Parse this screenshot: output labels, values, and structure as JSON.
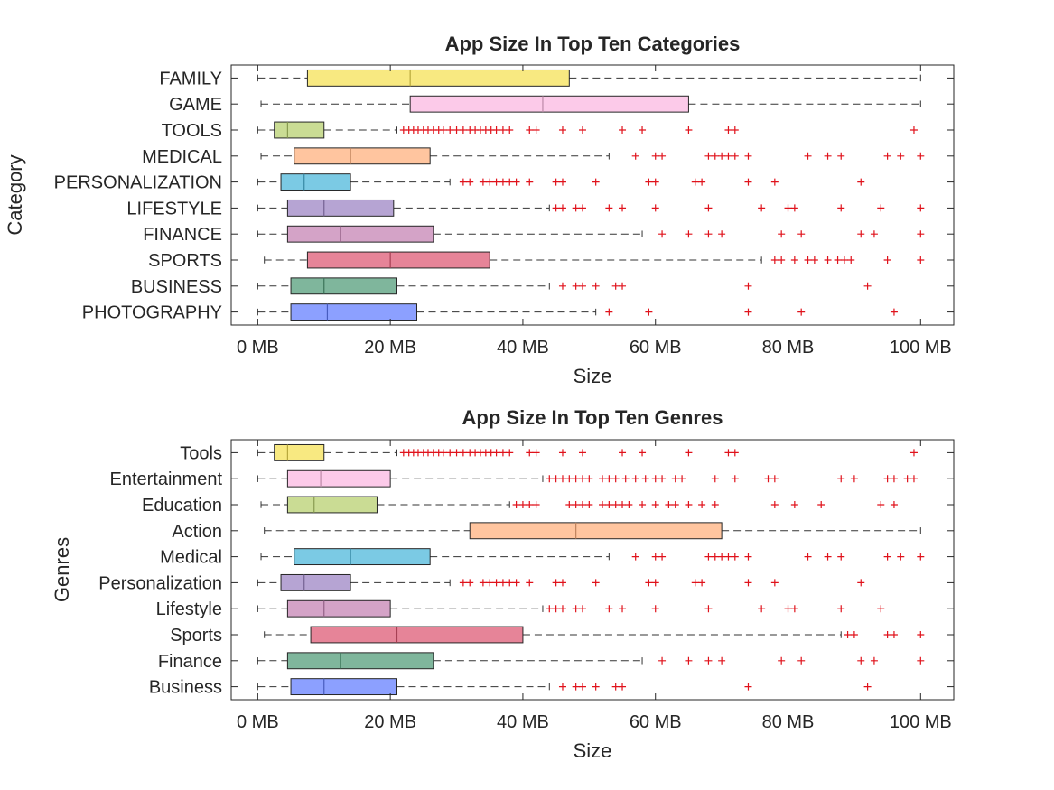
{
  "chart_data": [
    {
      "type": "boxplot",
      "orientation": "horizontal",
      "title": "App Size In Top Ten Categories",
      "xlabel": "Size",
      "ylabel": "Category",
      "xlim": [
        -4,
        105
      ],
      "xticks": [
        0,
        20,
        40,
        60,
        80,
        100
      ],
      "xtick_labels": [
        "0 MB",
        "20 MB",
        "40 MB",
        "60 MB",
        "80 MB",
        "100 MB"
      ],
      "grid": false,
      "categories": [
        {
          "name": "FAMILY",
          "color": "#F5E050",
          "whisker_low": 0,
          "q1": 7.5,
          "median": 23,
          "q3": 47,
          "whisker_high": 100,
          "outliers": []
        },
        {
          "name": "GAME",
          "color": "#FBB6E0",
          "whisker_low": 0.5,
          "q1": 23,
          "median": 43,
          "q3": 65,
          "whisker_high": 100,
          "outliers": []
        },
        {
          "name": "TOOLS",
          "color": "#B5CF6B",
          "whisker_low": 0,
          "q1": 2.5,
          "median": 4.5,
          "q3": 10,
          "whisker_high": 21,
          "outliers": [
            22,
            22.8,
            23.5,
            24.2,
            25,
            25.7,
            26.5,
            27.3,
            28,
            29,
            30,
            31,
            32,
            32.8,
            33.6,
            34.4,
            35.2,
            36,
            37,
            38,
            41,
            42,
            46,
            49,
            55,
            58,
            65,
            71,
            72,
            99
          ]
        },
        {
          "name": "MEDICAL",
          "color": "#FFAF7A",
          "whisker_low": 0.5,
          "q1": 5.5,
          "median": 14,
          "q3": 26,
          "whisker_high": 53,
          "outliers": [
            57,
            60,
            61,
            68,
            69,
            70,
            71,
            72,
            74,
            83,
            86,
            88,
            95,
            97,
            100
          ]
        },
        {
          "name": "PERSONALIZATION",
          "color": "#48B5DA",
          "whisker_low": 0,
          "q1": 3.5,
          "median": 7,
          "q3": 14,
          "whisker_high": 29,
          "outliers": [
            31,
            32,
            34,
            35,
            36,
            37,
            38,
            39,
            41,
            45,
            46,
            51,
            59,
            60,
            66,
            67,
            74,
            78,
            91
          ]
        },
        {
          "name": "LIFESTYLE",
          "color": "#9A81C2",
          "whisker_low": 0,
          "q1": 4.5,
          "median": 10,
          "q3": 20.5,
          "whisker_high": 44,
          "outliers": [
            45,
            46,
            48,
            49,
            53,
            55,
            60,
            68,
            76,
            80,
            81,
            88,
            94,
            100
          ]
        },
        {
          "name": "FINANCE",
          "color": "#C480B2",
          "whisker_low": 0,
          "q1": 4.5,
          "median": 12.5,
          "q3": 26.5,
          "whisker_high": 58,
          "outliers": [
            61,
            65,
            68,
            70,
            79,
            82,
            91,
            93,
            100
          ]
        },
        {
          "name": "SPORTS",
          "color": "#DD5570",
          "whisker_low": 1,
          "q1": 7.5,
          "median": 20,
          "q3": 35,
          "whisker_high": 76,
          "outliers": [
            78,
            79,
            81,
            83,
            84,
            86,
            87.5,
            88.5,
            89.5,
            95,
            100
          ]
        },
        {
          "name": "BUSINESS",
          "color": "#4E9A76",
          "whisker_low": 0,
          "q1": 5,
          "median": 10,
          "q3": 21,
          "whisker_high": 44,
          "outliers": [
            46,
            48,
            49,
            51,
            54,
            55,
            74,
            92
          ]
        },
        {
          "name": "PHOTOGRAPHY",
          "color": "#5F7BFF",
          "whisker_low": 0,
          "q1": 5,
          "median": 10.5,
          "q3": 24,
          "whisker_high": 51,
          "outliers": [
            53,
            59,
            74,
            82,
            96
          ]
        }
      ]
    },
    {
      "type": "boxplot",
      "orientation": "horizontal",
      "title": "App Size In Top Ten Genres",
      "xlabel": "Size",
      "ylabel": "Genres",
      "xlim": [
        -4,
        105
      ],
      "xticks": [
        0,
        20,
        40,
        60,
        80,
        100
      ],
      "xtick_labels": [
        "0 MB",
        "20 MB",
        "40 MB",
        "60 MB",
        "80 MB",
        "100 MB"
      ],
      "grid": false,
      "categories": [
        {
          "name": "Tools",
          "color": "#F5E050",
          "whisker_low": 0,
          "q1": 2.5,
          "median": 4.5,
          "q3": 10,
          "whisker_high": 21,
          "outliers": [
            22,
            22.8,
            23.5,
            24.2,
            25,
            25.7,
            26.5,
            27.3,
            28,
            29,
            30,
            31,
            32,
            32.8,
            33.6,
            34.4,
            35.2,
            36,
            37,
            38,
            41,
            42,
            46,
            49,
            55,
            58,
            65,
            71,
            72,
            99
          ]
        },
        {
          "name": "Entertainment",
          "color": "#FBB6E0",
          "whisker_low": 0,
          "q1": 4.5,
          "median": 9.5,
          "q3": 20,
          "whisker_high": 43,
          "outliers": [
            44,
            45,
            46,
            47,
            48,
            49,
            50,
            52,
            53,
            54,
            55.5,
            57,
            58.5,
            60,
            61,
            63,
            64,
            69,
            72,
            77,
            78,
            88,
            90,
            95,
            96,
            98,
            99
          ]
        },
        {
          "name": "Education",
          "color": "#B5CF6B",
          "whisker_low": 0.5,
          "q1": 4.5,
          "median": 8.5,
          "q3": 18,
          "whisker_high": 38,
          "outliers": [
            39,
            40,
            41,
            42,
            47,
            48,
            49,
            50,
            52,
            53,
            54,
            55,
            56,
            58,
            60,
            62,
            63,
            65,
            67,
            69,
            78,
            81,
            85,
            94,
            96
          ]
        },
        {
          "name": "Action",
          "color": "#FFAF7A",
          "whisker_low": 1,
          "q1": 32,
          "median": 48,
          "q3": 70,
          "whisker_high": 100,
          "outliers": []
        },
        {
          "name": "Medical",
          "color": "#48B5DA",
          "whisker_low": 0.5,
          "q1": 5.5,
          "median": 14,
          "q3": 26,
          "whisker_high": 53,
          "outliers": [
            57,
            60,
            61,
            68,
            69,
            70,
            71,
            72,
            74,
            83,
            86,
            88,
            95,
            97,
            100
          ]
        },
        {
          "name": "Personalization",
          "color": "#9A81C2",
          "whisker_low": 0,
          "q1": 3.5,
          "median": 7,
          "q3": 14,
          "whisker_high": 29,
          "outliers": [
            31,
            32,
            34,
            35,
            36,
            37,
            38,
            39,
            41,
            45,
            46,
            51,
            59,
            60,
            66,
            67,
            74,
            78,
            91
          ]
        },
        {
          "name": "Lifestyle",
          "color": "#C480B2",
          "whisker_low": 0,
          "q1": 4.5,
          "median": 10,
          "q3": 20,
          "whisker_high": 43,
          "outliers": [
            44,
            45,
            46,
            48,
            49,
            53,
            55,
            60,
            68,
            76,
            80,
            81,
            88,
            94
          ]
        },
        {
          "name": "Sports",
          "color": "#DD5570",
          "whisker_low": 1,
          "q1": 8,
          "median": 21,
          "q3": 40,
          "whisker_high": 88,
          "outliers": [
            89,
            90,
            95,
            96,
            100
          ]
        },
        {
          "name": "Finance",
          "color": "#4E9A76",
          "whisker_low": 0,
          "q1": 4.5,
          "median": 12.5,
          "q3": 26.5,
          "whisker_high": 58,
          "outliers": [
            61,
            65,
            68,
            70,
            79,
            82,
            91,
            93,
            100
          ]
        },
        {
          "name": "Business",
          "color": "#5F7BFF",
          "whisker_low": 0,
          "q1": 5,
          "median": 10,
          "q3": 21,
          "whisker_high": 44,
          "outliers": [
            46,
            48,
            49,
            51,
            54,
            55,
            74,
            92
          ]
        }
      ]
    }
  ]
}
